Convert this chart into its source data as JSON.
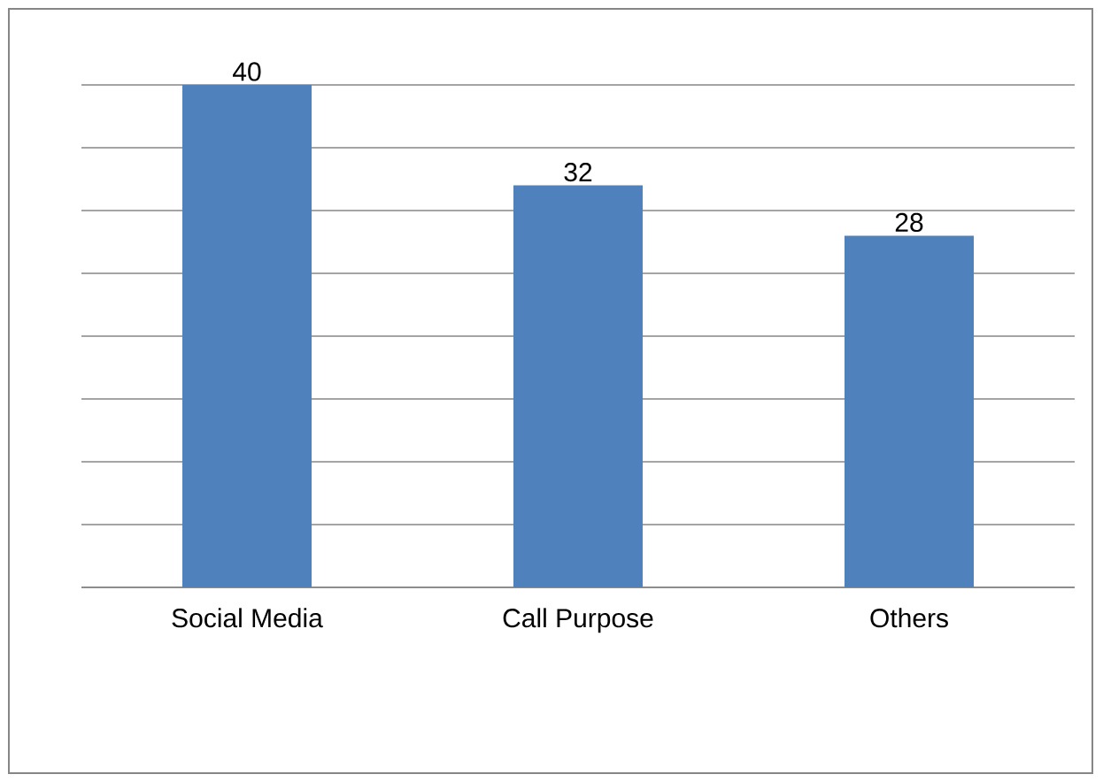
{
  "chart_data": {
    "type": "bar",
    "categories": [
      "Social Media",
      "Call Purpose",
      "Others"
    ],
    "values": [
      40,
      32,
      28
    ],
    "color": "#4f81bd",
    "ylim": [
      0,
      40
    ],
    "yticks": [
      {
        "value": 0,
        "label": null
      },
      {
        "value": 5,
        "label": null
      },
      {
        "value": 10,
        "label": null
      },
      {
        "value": 15,
        "label": null
      },
      {
        "value": 20,
        "label": null
      },
      {
        "value": 25,
        "label": null
      },
      {
        "value": 30,
        "label": null
      },
      {
        "value": 35,
        "label": null
      },
      {
        "value": 40,
        "label": null
      }
    ],
    "grid": "y",
    "tick_labels": "x",
    "data_labels": true
  }
}
